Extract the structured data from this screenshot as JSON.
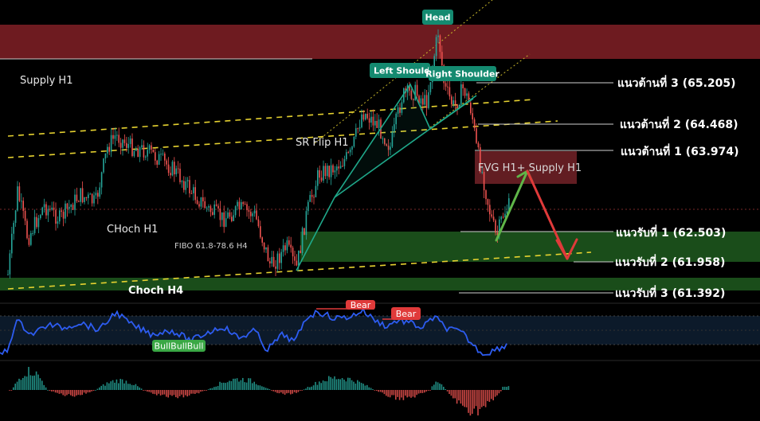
{
  "chart_data": {
    "type": "candlestick",
    "panels": [
      "price",
      "rsi",
      "histogram"
    ],
    "levels": [
      {
        "name": "resistance-3",
        "label": "แนวต้านที่ 3 (65.205)",
        "value": 65.205
      },
      {
        "name": "resistance-2",
        "label": "แนวต้านที่ 2 (64.468)",
        "value": 64.468
      },
      {
        "name": "resistance-1",
        "label": "แนวต้านที่ 1 (63.974)",
        "value": 63.974
      },
      {
        "name": "support-1",
        "label": "แนวรับที่ 1 (62.503)",
        "value": 62.503
      },
      {
        "name": "support-2",
        "label": "แนวรับที่ 2 (61.958)",
        "value": 61.958
      },
      {
        "name": "support-3",
        "label": "แนวรับที่ 3 (61.392)",
        "value": 61.392
      }
    ],
    "annotations": {
      "supply_h1": "Supply H1",
      "choch_h1": "CHoch H1",
      "fibo": "FIBO 61.8-78.6 H4",
      "choch_h4": "Choch H4",
      "sr_flip": "SR Flip H1",
      "fvg": "FVG H1+ Supply H1",
      "head": "Head",
      "left_shoulder": "Left Shoulde",
      "right_shoulder": "Right Shoulder"
    },
    "rsi_signals": {
      "bull": "BullBullBull",
      "bear_1": "Bear",
      "bear_2": "Bear"
    },
    "colors": {
      "up": "#26a69a",
      "down": "#ef5350",
      "supply_zone": "#7a1e24",
      "demand_zone": "#1f5a1f",
      "trend_dash": "#e6d230",
      "pattern": "#1fa88a",
      "rsi_line": "#2d5cf0",
      "arrow_up": "#5fb548",
      "arrow_down": "#e03a3a"
    }
  }
}
